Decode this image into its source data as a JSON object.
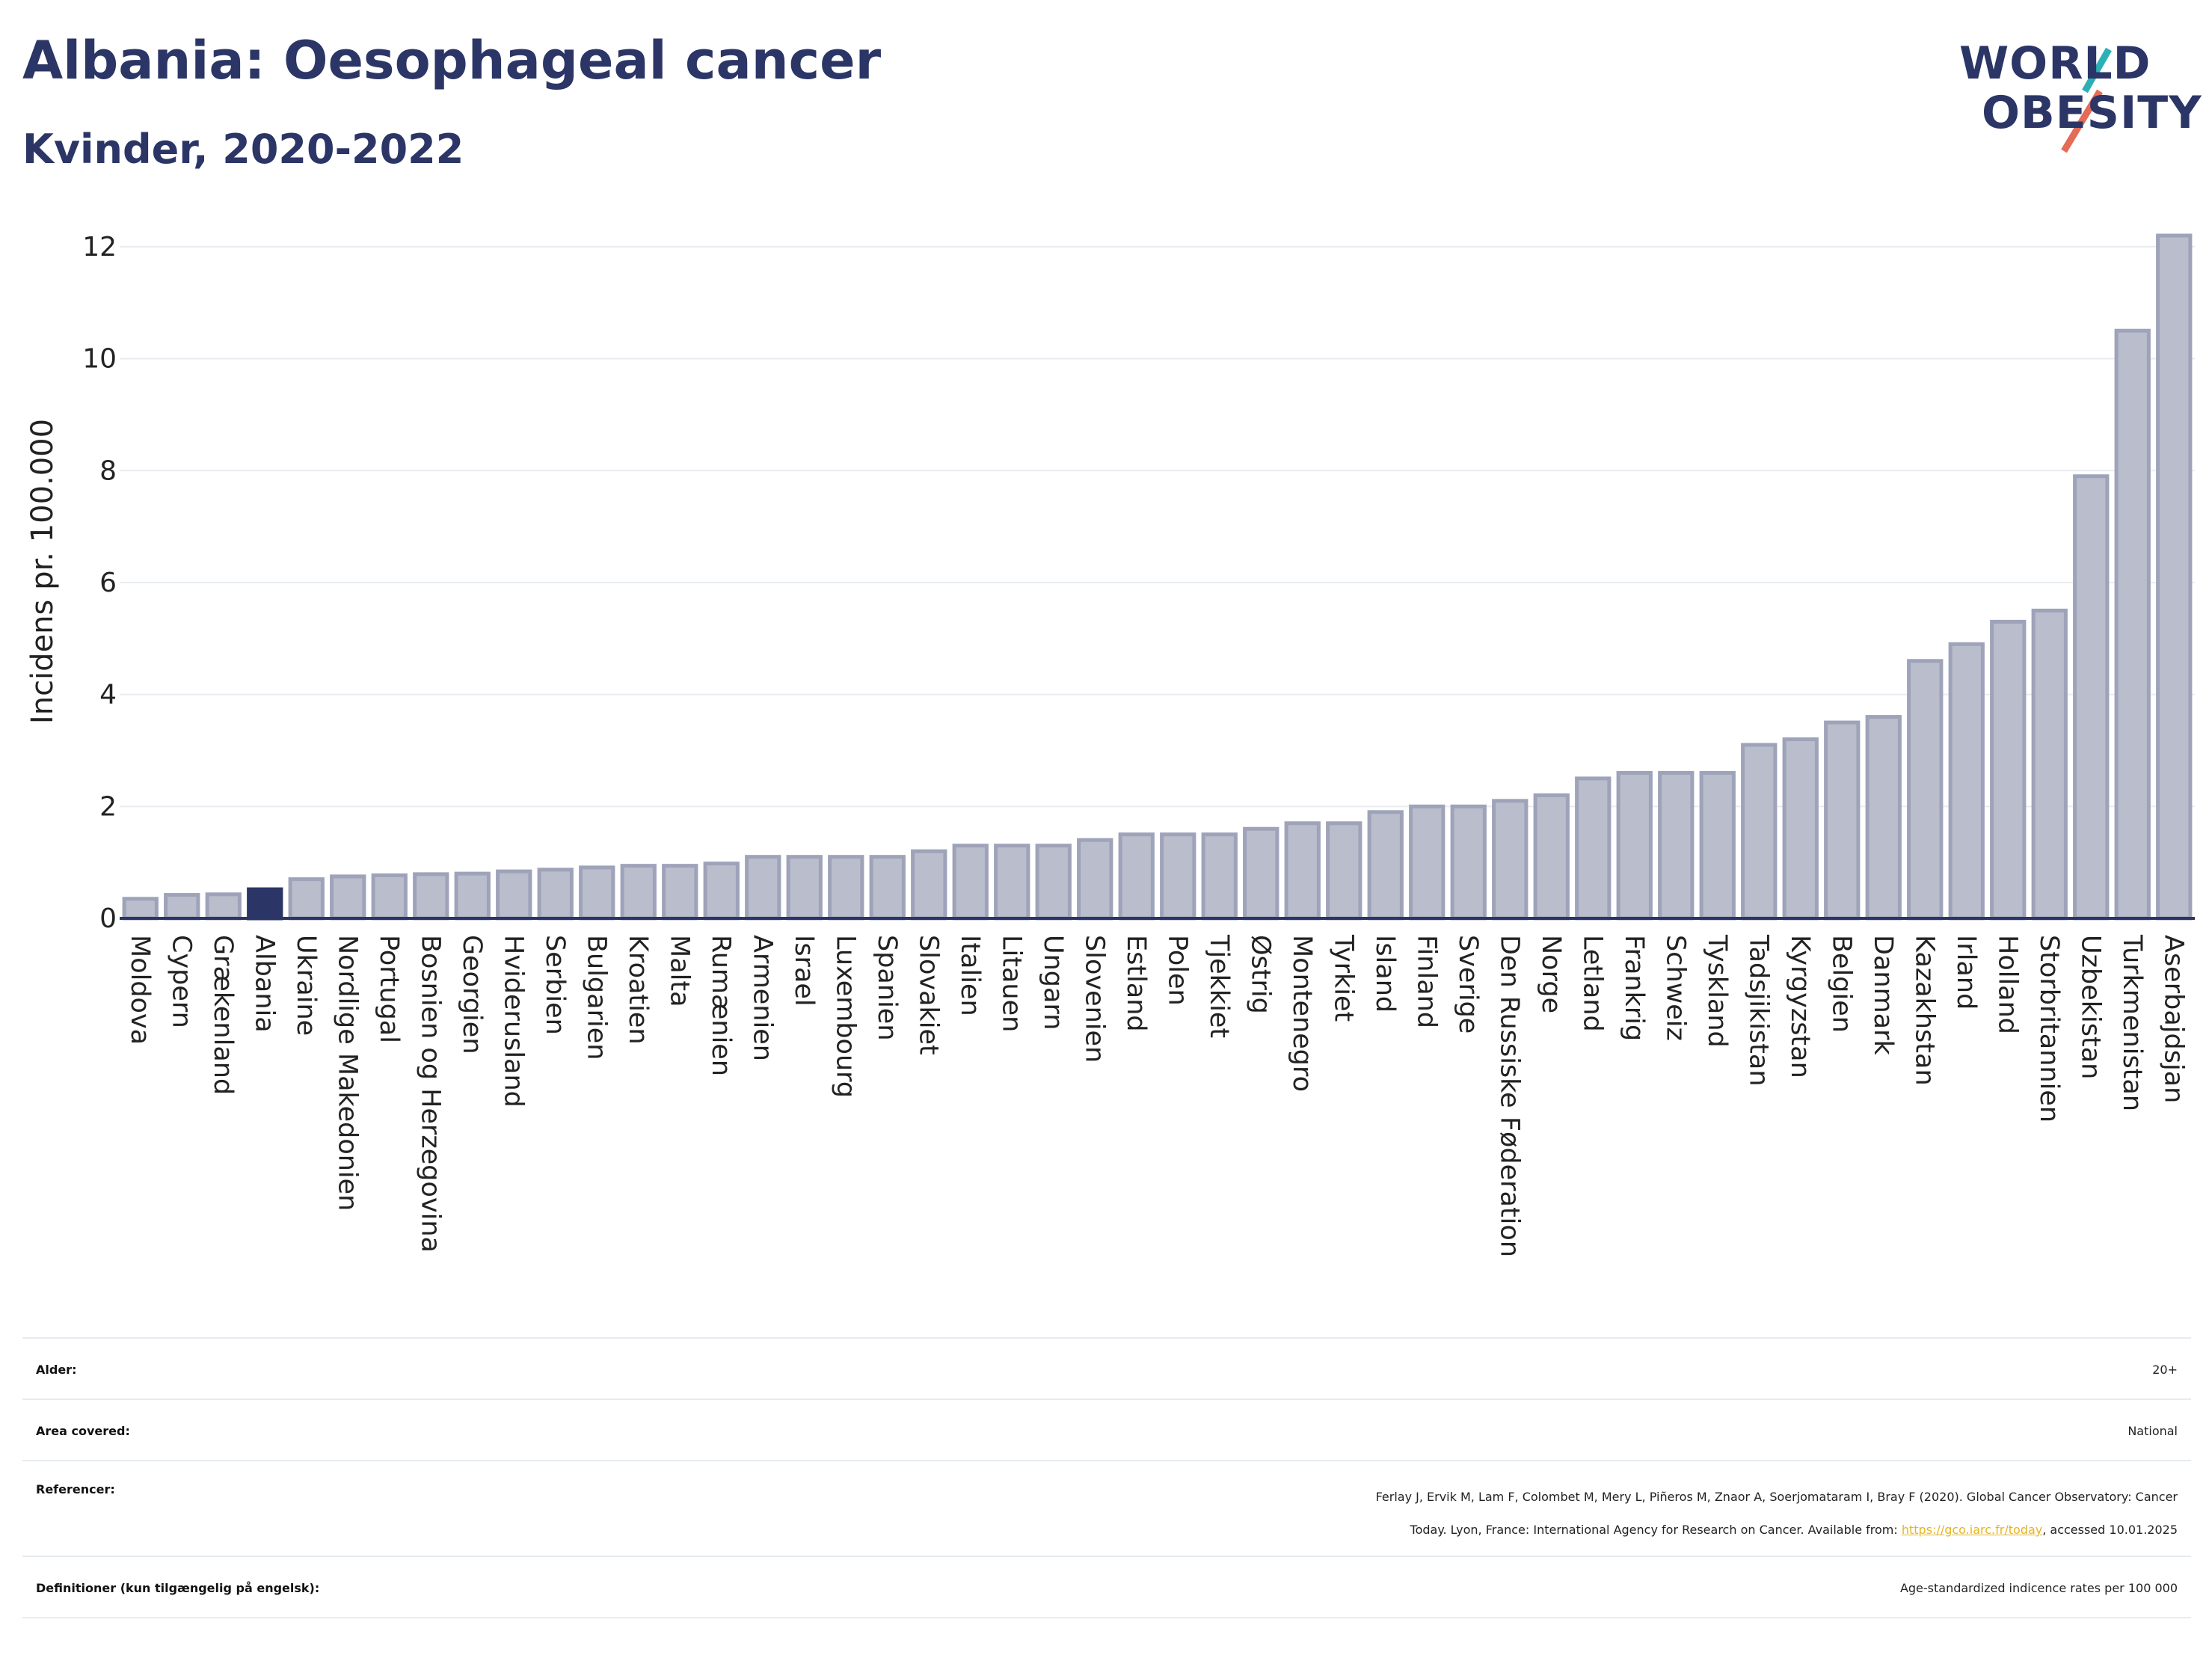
{
  "header": {
    "title": "Albania: Oesophageal cancer",
    "subtitle": "Kvinder, 2020-2022"
  },
  "logo": {
    "line1": "WORLD",
    "line2": "OBESITY",
    "colors": [
      "#2b3566",
      "#e36b57",
      "#2bb0b6"
    ]
  },
  "colors": {
    "highlight": "#2b3566",
    "bar_fill": "#b9bdcc",
    "bar_stroke": "#9ea3b9",
    "axis": "#2b3566",
    "grid": "#e8ecf0",
    "link": "#e6b422"
  },
  "chart_data": {
    "type": "bar",
    "ylabel": "Incidens pr. 100.000",
    "ylim": [
      0,
      12.4
    ],
    "yticks": [
      0,
      2,
      4,
      6,
      8,
      10,
      12
    ],
    "grid": true,
    "highlight": "Albania",
    "categories": [
      "Moldova",
      "Cypern",
      "Grækenland",
      "Albania",
      "Ukraine",
      "Nordlige Makedonien",
      "Portugal",
      "Bosnien og Herzegovina",
      "Georgien",
      "Hviderusland",
      "Serbien",
      "Bulgarien",
      "Kroatien",
      "Malta",
      "Rumænien",
      "Armenien",
      "Israel",
      "Luxembourg",
      "Spanien",
      "Slovakiet",
      "Italien",
      "Litauen",
      "Ungarn",
      "Slovenien",
      "Estland",
      "Polen",
      "Tjekkiet",
      "Østrig",
      "Montenegro",
      "Tyrkiet",
      "Island",
      "Finland",
      "Sverige",
      "Den Russiske Føderation",
      "Norge",
      "Letland",
      "Frankrig",
      "Schweiz",
      "Tyskland",
      "Tadsjikistan",
      "Kyrgyzstan",
      "Belgien",
      "Danmark",
      "Kazakhstan",
      "Irland",
      "Holland",
      "Storbritannien",
      "Uzbekistan",
      "Turkmenistan",
      "Aserbajdsjan"
    ],
    "values": [
      0.35,
      0.42,
      0.43,
      0.52,
      0.7,
      0.75,
      0.77,
      0.79,
      0.8,
      0.84,
      0.87,
      0.91,
      0.94,
      0.94,
      0.98,
      1.1,
      1.1,
      1.1,
      1.1,
      1.2,
      1.3,
      1.3,
      1.3,
      1.4,
      1.5,
      1.5,
      1.5,
      1.6,
      1.7,
      1.7,
      1.9,
      2.0,
      2.0,
      2.1,
      2.2,
      2.5,
      2.6,
      2.6,
      2.6,
      3.1,
      3.2,
      3.5,
      3.6,
      4.6,
      4.9,
      5.3,
      5.5,
      7.9,
      10.5,
      12.2
    ]
  },
  "meta": {
    "age_label": "Alder:",
    "age_value": "20+",
    "area_label": "Area covered:",
    "area_value": "National",
    "ref_label": "Referencer:",
    "ref_line1": "Ferlay J, Ervik M, Lam F, Colombet M, Mery L, Piñeros M, Znaor A, Soerjomataram I, Bray F (2020). Global Cancer Observatory: Cancer",
    "ref_line2_pre": "Today. Lyon, France: International Agency for Research on Cancer. Available from: ",
    "ref_link": "https://gco.iarc.fr/today",
    "ref_line2_post": ", accessed 10.01.2025",
    "def_label": "Definitioner (kun tilgængelig på engelsk):",
    "def_value": "Age-standardized indicence rates per 100 000"
  }
}
